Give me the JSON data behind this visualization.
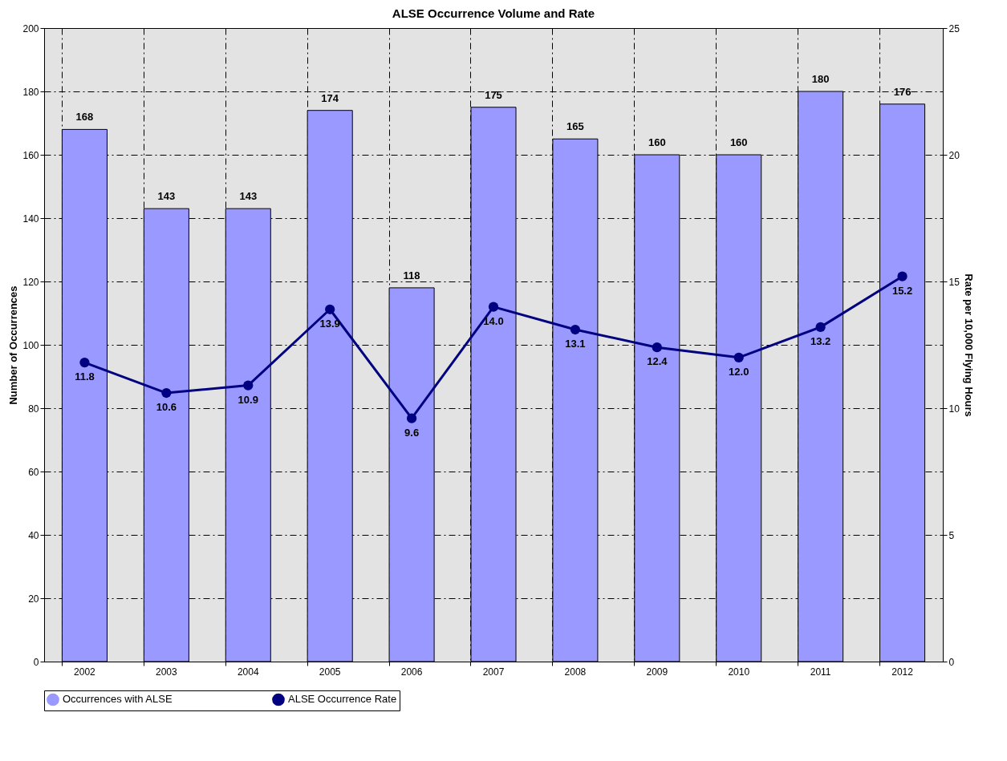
{
  "chart_data": {
    "type": "bar",
    "title": "ALSE Occurrence Volume and Rate",
    "ylabel": "Number of Occurrences",
    "y2label": "Rate per 10,000 Flying Hours",
    "categories": [
      "2002",
      "2003",
      "2004",
      "2005",
      "2006",
      "2007",
      "2008",
      "2009",
      "2010",
      "2011",
      "2012"
    ],
    "series": [
      {
        "name": "Occurrences with ALSE",
        "color": "#9999ff",
        "values": [
          168,
          143,
          143,
          174,
          118,
          175,
          165,
          160,
          160,
          180,
          176
        ]
      },
      {
        "name": "ALSE Occurrence Rate",
        "type": "line",
        "axis": "y2",
        "color": "#000080",
        "values": [
          11.8,
          10.6,
          10.9,
          13.9,
          9.6,
          14.0,
          13.1,
          12.4,
          12.0,
          13.2,
          15.2
        ],
        "value_labels": [
          "11.8",
          "10.6",
          "10.9",
          "13.9",
          "9.6",
          "14.0",
          "13.1",
          "12.4",
          "12.0",
          "13.2",
          "15.2"
        ]
      }
    ],
    "ylim": [
      0,
      200
    ],
    "yticks": [
      0,
      20,
      40,
      60,
      80,
      100,
      120,
      140,
      160,
      180,
      200
    ],
    "y2lim": [
      0,
      25
    ],
    "y2ticks": [
      0,
      5,
      10,
      15,
      20,
      25
    ],
    "data_labels": true,
    "grid": true,
    "legend": "bottom",
    "marker": "circle",
    "line_style": "solid"
  }
}
